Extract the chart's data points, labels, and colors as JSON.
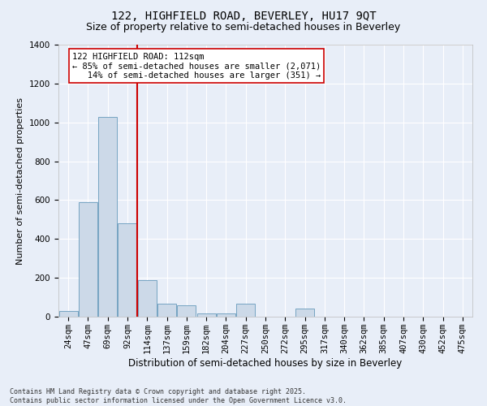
{
  "title1": "122, HIGHFIELD ROAD, BEVERLEY, HU17 9QT",
  "title2": "Size of property relative to semi-detached houses in Beverley",
  "xlabel": "Distribution of semi-detached houses by size in Beverley",
  "ylabel": "Number of semi-detached properties",
  "categories": [
    "24sqm",
    "47sqm",
    "69sqm",
    "92sqm",
    "114sqm",
    "137sqm",
    "159sqm",
    "182sqm",
    "204sqm",
    "227sqm",
    "250sqm",
    "272sqm",
    "295sqm",
    "317sqm",
    "340sqm",
    "362sqm",
    "385sqm",
    "407sqm",
    "430sqm",
    "452sqm",
    "475sqm"
  ],
  "values": [
    30,
    590,
    1030,
    480,
    190,
    65,
    60,
    15,
    15,
    65,
    0,
    0,
    40,
    0,
    0,
    0,
    0,
    0,
    0,
    0,
    0
  ],
  "bar_color": "#ccd9e8",
  "bar_edge_color": "#6699bb",
  "vline_color": "#cc0000",
  "annotation_text": "122 HIGHFIELD ROAD: 112sqm\n← 85% of semi-detached houses are smaller (2,071)\n   14% of semi-detached houses are larger (351) →",
  "annotation_box_facecolor": "#ffffff",
  "annotation_box_edgecolor": "#cc0000",
  "ylim": [
    0,
    1400
  ],
  "yticks": [
    0,
    200,
    400,
    600,
    800,
    1000,
    1200,
    1400
  ],
  "bg_color": "#e8eef8",
  "plot_bg_color": "#e8eef8",
  "footnote": "Contains HM Land Registry data © Crown copyright and database right 2025.\nContains public sector information licensed under the Open Government Licence v3.0.",
  "title1_fontsize": 10,
  "title2_fontsize": 9,
  "xlabel_fontsize": 8.5,
  "ylabel_fontsize": 8,
  "tick_fontsize": 7.5,
  "annot_fontsize": 7.5,
  "footnote_fontsize": 6,
  "vline_x_index": 3.5
}
